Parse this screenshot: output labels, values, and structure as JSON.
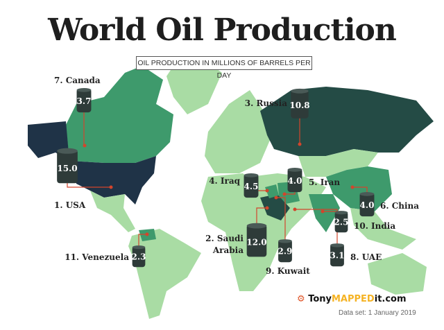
{
  "title": "World Oil Production",
  "subtitle": "OIL PRODUCTION IN MILLIONS OF BARRELS PER DAY",
  "colors": {
    "land": "#a9dca4",
    "mid": "#3e9a6c",
    "dark": "#244b45",
    "usa": "#1f3347",
    "barrel": "#2e3b39",
    "line": "#d2452c"
  },
  "countries": [
    {
      "rank_label": "1. USA",
      "value": "15.0"
    },
    {
      "rank_label": "2. Saudi",
      "rank_label2": "Arabia",
      "value": "12.0"
    },
    {
      "rank_label": "3. Russia",
      "value": "10.8"
    },
    {
      "rank_label": "4. Iraq",
      "value": "4.5"
    },
    {
      "rank_label": "5. Iran",
      "value": "4.0"
    },
    {
      "rank_label": "6. China",
      "value": "4.0"
    },
    {
      "rank_label": "7. Canada",
      "value": "3.7"
    },
    {
      "rank_label": "8. UAE",
      "value": "3.1"
    },
    {
      "rank_label": "9. Kuwait",
      "value": "2.9"
    },
    {
      "rank_label": "10. India",
      "value": "2.5"
    },
    {
      "rank_label": "11. Venezuela",
      "value": "2.3"
    }
  ],
  "brand": {
    "a": "Tony",
    "b": "MAPPED",
    "c": "it.com"
  },
  "dataset": "Data set: 1 January 2019"
}
